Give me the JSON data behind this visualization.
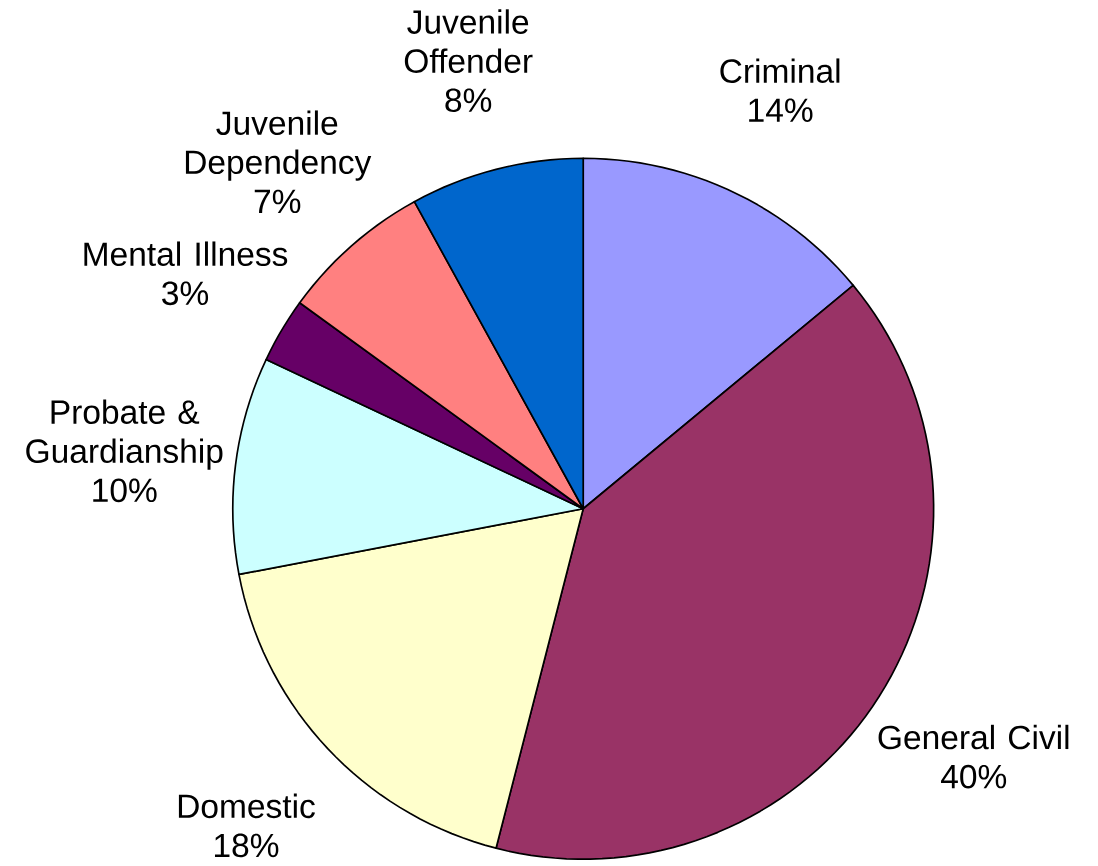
{
  "chart_data": {
    "type": "pie",
    "categories": [
      "Criminal",
      "General Civil",
      "Domestic",
      "Probate & Guardianship",
      "Mental Illness",
      "Juvenile Dependency",
      "Juvenile Offender"
    ],
    "values": [
      14,
      40,
      18,
      10,
      3,
      7,
      8
    ],
    "value_labels": [
      "14%",
      "40%",
      "18%",
      "10%",
      "3%",
      "7%",
      "8%"
    ],
    "colors": [
      "#9999ff",
      "#993366",
      "#ffffcc",
      "#ccffff",
      "#660066",
      "#ff8080",
      "#0066cc"
    ]
  }
}
